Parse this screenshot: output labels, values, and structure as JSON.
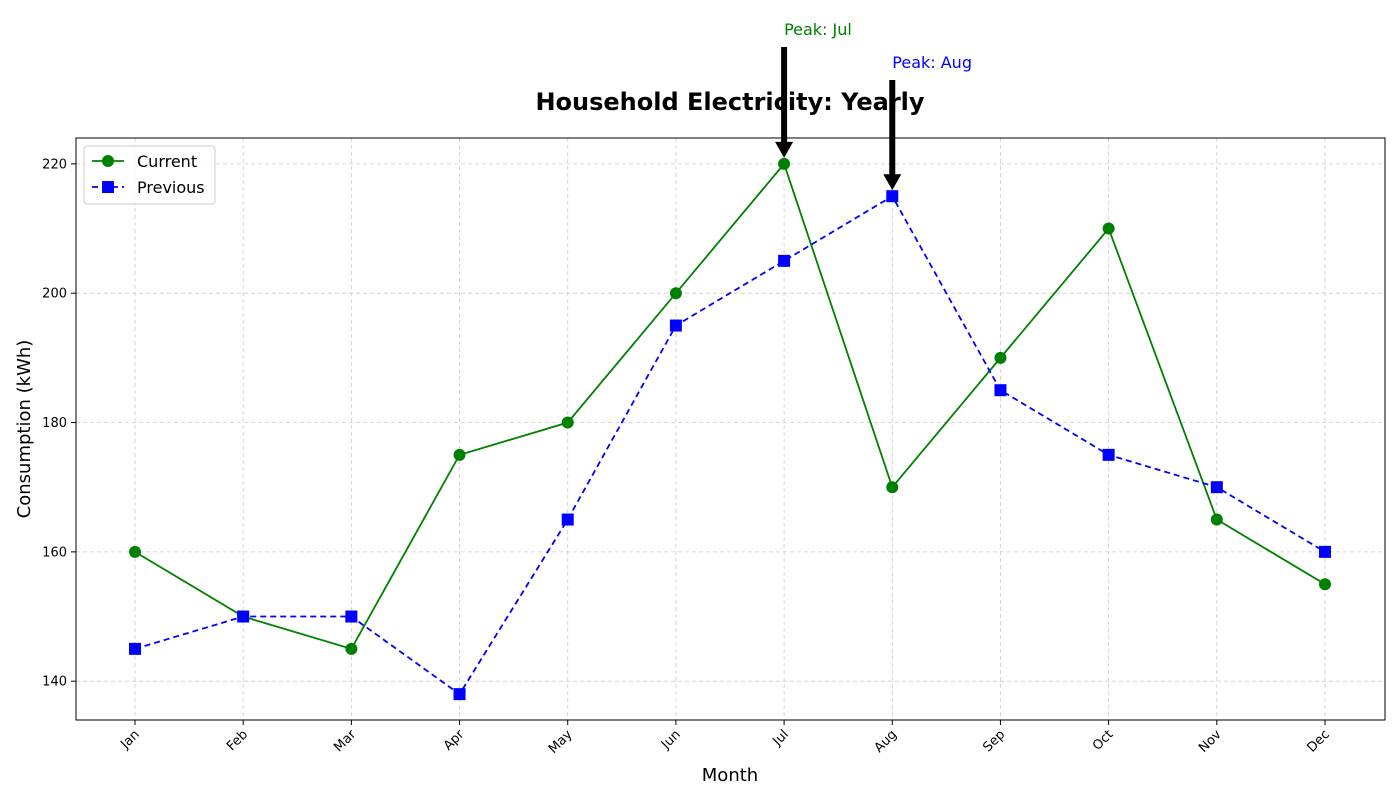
{
  "chart_data": {
    "type": "line",
    "title": "Household Electricity: Yearly",
    "xlabel": "Month",
    "ylabel": "Consumption (kWh)",
    "categories": [
      "Jan",
      "Feb",
      "Mar",
      "Apr",
      "May",
      "Jun",
      "Jul",
      "Aug",
      "Sep",
      "Oct",
      "Nov",
      "Dec"
    ],
    "series": [
      {
        "name": "Current",
        "values": [
          160,
          150,
          145,
          175,
          180,
          200,
          220,
          170,
          190,
          210,
          165,
          155
        ],
        "color": "#008000",
        "line_style": "solid",
        "marker": "circle"
      },
      {
        "name": "Previous",
        "values": [
          145,
          150,
          150,
          138,
          165,
          195,
          205,
          215,
          185,
          175,
          170,
          160
        ],
        "color": "#0000ff",
        "line_style": "dashed",
        "marker": "square"
      }
    ],
    "ylim": [
      134,
      224
    ],
    "yticks": [
      140,
      160,
      180,
      200,
      220
    ],
    "grid": true,
    "legend_position": "upper-left",
    "annotations": [
      {
        "text": "Peak: Jul",
        "category": "Jul",
        "value": 220,
        "color": "#008000"
      },
      {
        "text": "Peak: Aug",
        "category": "Aug",
        "value": 215,
        "color": "#0000ff"
      }
    ]
  }
}
